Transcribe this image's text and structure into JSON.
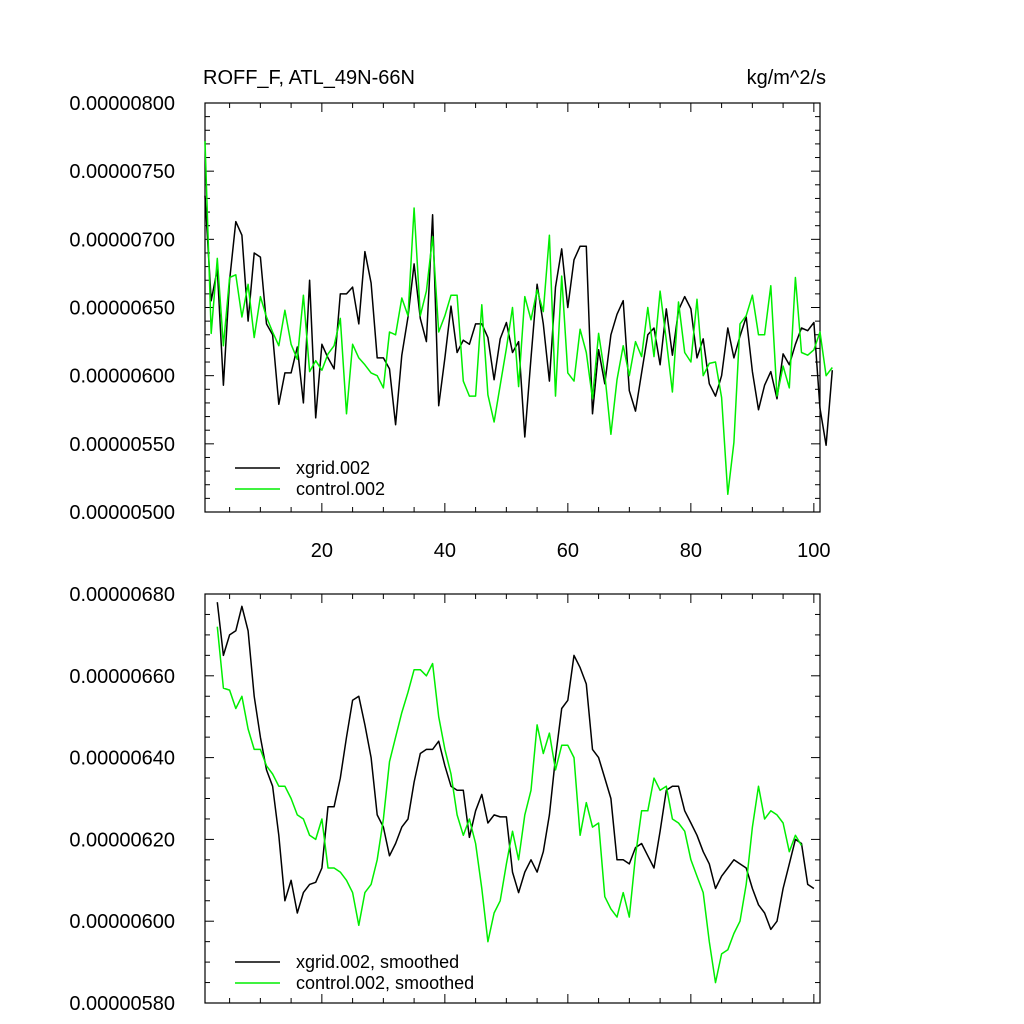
{
  "colors": {
    "xgrid": "#000000",
    "control": "#00ee00"
  },
  "chart_data": [
    {
      "type": "line",
      "title": "ROFF_F, ATL_49N-66N",
      "units": "kg/m^2/s",
      "x_ticks": [
        20,
        40,
        60,
        80,
        100
      ],
      "x_tick_labels": [
        "20",
        "40",
        "60",
        "80",
        "100"
      ],
      "xlim": [
        1,
        101
      ],
      "ylim": [
        5e-06,
        8e-06
      ],
      "y_ticks": [
        5e-06,
        5.5e-06,
        6e-06,
        6.5e-06,
        7e-06,
        7.5e-06,
        8e-06
      ],
      "y_tick_labels": [
        "0.00000500",
        "0.00000550",
        "0.00000600",
        "0.00000650",
        "0.00000700",
        "0.00000750",
        "0.00000800"
      ],
      "legend_position": "bottom-left",
      "series": [
        {
          "name": "xgrid.002",
          "color": "#000000",
          "x_start": 1,
          "values": [
            7.32,
            6.55,
            6.78,
            5.93,
            6.7,
            7.13,
            7.03,
            6.4,
            6.9,
            6.87,
            6.38,
            6.3,
            5.79,
            6.02,
            6.02,
            6.21,
            5.8,
            6.7,
            5.69,
            6.23,
            6.13,
            6.05,
            6.6,
            6.6,
            6.65,
            6.38,
            6.91,
            6.68,
            6.13,
            6.13,
            6.05,
            5.64,
            6.15,
            6.43,
            6.82,
            6.42,
            6.25,
            7.18,
            5.78,
            6.13,
            6.51,
            6.17,
            6.26,
            6.23,
            6.38,
            6.38,
            6.28,
            5.97,
            6.27,
            6.39,
            6.17,
            6.25,
            5.55,
            6.13,
            6.67,
            6.38,
            5.96,
            6.65,
            6.93,
            6.5,
            6.85,
            6.95,
            6.95,
            5.72,
            6.19,
            5.94,
            6.3,
            6.45,
            6.55,
            5.89,
            5.74,
            6.02,
            6.3,
            6.35,
            6.08,
            6.49,
            6.15,
            6.48,
            6.58,
            6.49,
            6.13,
            6.27,
            5.94,
            5.85,
            6.0,
            6.35,
            6.13,
            6.29,
            6.43,
            6.03,
            5.75,
            5.93,
            6.03,
            5.83,
            6.16,
            6.08,
            6.23,
            6.35,
            6.33,
            6.39,
            5.76,
            5.49,
            6.04
          ]
        },
        {
          "name": "control.002",
          "color": "#00ee00",
          "x_start": 1,
          "values": [
            7.72,
            6.31,
            6.86,
            6.22,
            6.72,
            6.74,
            6.43,
            6.67,
            6.28,
            6.58,
            6.43,
            6.32,
            6.22,
            6.48,
            6.23,
            6.12,
            6.59,
            6.03,
            6.11,
            6.04,
            6.16,
            6.22,
            6.42,
            5.72,
            6.23,
            6.13,
            6.08,
            6.02,
            6.0,
            5.91,
            6.32,
            6.3,
            6.57,
            6.44,
            7.23,
            6.44,
            6.62,
            7.02,
            6.32,
            6.44,
            6.59,
            6.59,
            5.96,
            5.85,
            5.85,
            6.52,
            5.86,
            5.66,
            5.93,
            6.2,
            6.5,
            5.92,
            6.58,
            6.41,
            6.63,
            6.47,
            7.03,
            5.85,
            6.73,
            6.02,
            5.96,
            6.34,
            6.17,
            5.83,
            6.31,
            6.01,
            5.57,
            5.97,
            6.22,
            6.0,
            6.25,
            6.14,
            6.5,
            6.14,
            6.62,
            6.26,
            5.88,
            6.54,
            6.17,
            6.1,
            6.56,
            6.0,
            6.09,
            6.1,
            5.84,
            5.13,
            5.51,
            6.38,
            6.44,
            6.59,
            6.3,
            6.3,
            6.66,
            5.85,
            6.07,
            5.91,
            6.72,
            6.17,
            6.15,
            6.19,
            6.32,
            6.0,
            6.06
          ]
        }
      ]
    },
    {
      "type": "line",
      "title": "",
      "x_ticks": [
        20,
        40,
        60,
        80,
        100
      ],
      "x_tick_labels": [],
      "xlim": [
        1,
        101
      ],
      "ylim": [
        5.8e-06,
        6.8e-06
      ],
      "y_ticks": [
        5.8e-06,
        6e-06,
        6.2e-06,
        6.4e-06,
        6.6e-06,
        6.8e-06
      ],
      "y_tick_labels": [
        "0.00000580",
        "0.00000600",
        "0.00000620",
        "0.00000640",
        "0.00000660",
        "0.00000680"
      ],
      "legend_position": "bottom-left",
      "series": [
        {
          "name": "xgrid.002, smoothed",
          "color": "#000000",
          "x_start": 3,
          "values": [
            6.78,
            6.65,
            6.7,
            6.71,
            6.77,
            6.71,
            6.55,
            6.45,
            6.37,
            6.33,
            6.21,
            6.05,
            6.1,
            6.02,
            6.07,
            6.09,
            6.095,
            6.13,
            6.28,
            6.28,
            6.35,
            6.45,
            6.54,
            6.55,
            6.48,
            6.4,
            6.26,
            6.23,
            6.16,
            6.19,
            6.23,
            6.25,
            6.34,
            6.41,
            6.42,
            6.42,
            6.44,
            6.38,
            6.33,
            6.32,
            6.32,
            6.205,
            6.27,
            6.31,
            6.24,
            6.26,
            6.255,
            6.255,
            6.12,
            6.07,
            6.12,
            6.15,
            6.12,
            6.17,
            6.26,
            6.4,
            6.52,
            6.54,
            6.65,
            6.62,
            6.58,
            6.42,
            6.4,
            6.35,
            6.3,
            6.15,
            6.15,
            6.14,
            6.18,
            6.19,
            6.16,
            6.13,
            6.22,
            6.32,
            6.33,
            6.33,
            6.27,
            6.24,
            6.21,
            6.17,
            6.14,
            6.08,
            6.11,
            6.13,
            6.15,
            6.14,
            6.13,
            6.08,
            6.04,
            6.02,
            5.98,
            6.0,
            6.08,
            6.14,
            6.2,
            6.19,
            6.09,
            6.08
          ]
        },
        {
          "name": "control.002, smoothed",
          "color": "#00ee00",
          "x_start": 3,
          "values": [
            6.72,
            6.57,
            6.565,
            6.52,
            6.55,
            6.47,
            6.42,
            6.42,
            6.38,
            6.36,
            6.33,
            6.33,
            6.3,
            6.26,
            6.25,
            6.21,
            6.2,
            6.25,
            6.13,
            6.13,
            6.12,
            6.1,
            6.07,
            5.99,
            6.07,
            6.09,
            6.15,
            6.25,
            6.39,
            6.45,
            6.51,
            6.56,
            6.615,
            6.615,
            6.6,
            6.63,
            6.5,
            6.42,
            6.36,
            6.26,
            6.21,
            6.25,
            6.19,
            6.08,
            5.95,
            6.02,
            6.05,
            6.14,
            6.22,
            6.15,
            6.26,
            6.32,
            6.48,
            6.41,
            6.46,
            6.37,
            6.43,
            6.43,
            6.4,
            6.21,
            6.29,
            6.23,
            6.24,
            6.06,
            6.03,
            6.01,
            6.07,
            6.01,
            6.16,
            6.27,
            6.27,
            6.35,
            6.32,
            6.33,
            6.25,
            6.24,
            6.22,
            6.15,
            6.11,
            6.07,
            5.95,
            5.85,
            5.92,
            5.93,
            5.97,
            6.0,
            6.09,
            6.23,
            6.33,
            6.25,
            6.27,
            6.26,
            6.24,
            6.17,
            6.21,
            6.185
          ]
        }
      ]
    }
  ]
}
